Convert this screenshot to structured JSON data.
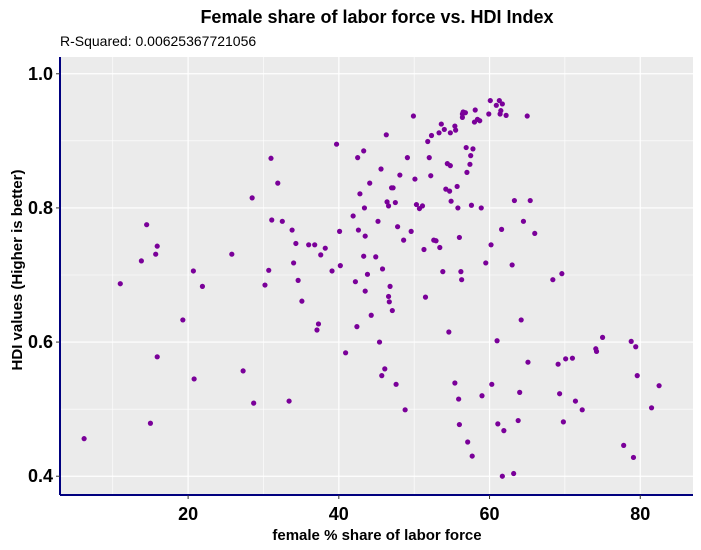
{
  "chart_data": {
    "type": "scatter",
    "title": "Female share of labor force vs. HDI Index",
    "subtitle": "R-Squared:  0.00625367721056",
    "xlabel": "female % share of labor force",
    "ylabel": "HDI values (Higher is better)",
    "xlim": [
      3,
      87
    ],
    "ylim": [
      0.372,
      1.025
    ],
    "x_ticks": [
      20,
      40,
      60,
      80
    ],
    "x_tick_labels": [
      "20",
      "40",
      "60",
      "80"
    ],
    "y_ticks": [
      0.4,
      0.6,
      0.8,
      1.0
    ],
    "y_tick_labels": [
      "0.4",
      "0.6",
      "0.8",
      "1.0"
    ],
    "grid": true,
    "colors": {
      "point": "#7a0099",
      "panel": "#ebebeb",
      "gridline": "#ffffff",
      "axis_line": "#00007f"
    },
    "points": [
      [
        6.2,
        0.456
      ],
      [
        11.0,
        0.687
      ],
      [
        13.8,
        0.721
      ],
      [
        14.5,
        0.775
      ],
      [
        15.0,
        0.479
      ],
      [
        15.7,
        0.731
      ],
      [
        15.9,
        0.743
      ],
      [
        15.9,
        0.578
      ],
      [
        19.3,
        0.633
      ],
      [
        20.7,
        0.706
      ],
      [
        20.8,
        0.545
      ],
      [
        21.9,
        0.683
      ],
      [
        25.8,
        0.731
      ],
      [
        27.3,
        0.557
      ],
      [
        28.5,
        0.815
      ],
      [
        28.7,
        0.509
      ],
      [
        30.2,
        0.685
      ],
      [
        30.7,
        0.707
      ],
      [
        31.0,
        0.874
      ],
      [
        31.1,
        0.782
      ],
      [
        31.9,
        0.837
      ],
      [
        32.5,
        0.78
      ],
      [
        33.4,
        0.512
      ],
      [
        33.8,
        0.767
      ],
      [
        34.0,
        0.718
      ],
      [
        34.3,
        0.747
      ],
      [
        34.6,
        0.692
      ],
      [
        35.1,
        0.661
      ],
      [
        36.0,
        0.745
      ],
      [
        36.8,
        0.745
      ],
      [
        37.1,
        0.618
      ],
      [
        37.3,
        0.627
      ],
      [
        37.6,
        0.73
      ],
      [
        38.2,
        0.74
      ],
      [
        39.1,
        0.706
      ],
      [
        39.7,
        0.895
      ],
      [
        40.1,
        0.765
      ],
      [
        40.2,
        0.714
      ],
      [
        40.9,
        0.584
      ],
      [
        41.9,
        0.788
      ],
      [
        42.2,
        0.69
      ],
      [
        42.4,
        0.623
      ],
      [
        42.5,
        0.875
      ],
      [
        42.6,
        0.767
      ],
      [
        42.8,
        0.821
      ],
      [
        43.3,
        0.728
      ],
      [
        43.3,
        0.885
      ],
      [
        43.4,
        0.8
      ],
      [
        43.5,
        0.676
      ],
      [
        43.5,
        0.758
      ],
      [
        43.8,
        0.701
      ],
      [
        44.1,
        0.837
      ],
      [
        44.3,
        0.64
      ],
      [
        44.9,
        0.727
      ],
      [
        45.2,
        0.78
      ],
      [
        45.4,
        0.6
      ],
      [
        45.6,
        0.858
      ],
      [
        45.7,
        0.55
      ],
      [
        45.8,
        0.709
      ],
      [
        46.1,
        0.56
      ],
      [
        46.3,
        0.909
      ],
      [
        46.4,
        0.809
      ],
      [
        46.6,
        0.668
      ],
      [
        46.6,
        0.803
      ],
      [
        46.7,
        0.66
      ],
      [
        46.8,
        0.683
      ],
      [
        47.0,
        0.83
      ],
      [
        47.1,
        0.647
      ],
      [
        47.2,
        0.83
      ],
      [
        47.5,
        0.808
      ],
      [
        47.6,
        0.537
      ],
      [
        47.8,
        0.772
      ],
      [
        48.1,
        0.849
      ],
      [
        48.6,
        0.752
      ],
      [
        48.8,
        0.499
      ],
      [
        49.1,
        0.875
      ],
      [
        49.6,
        0.765
      ],
      [
        49.9,
        0.937
      ],
      [
        50.1,
        0.843
      ],
      [
        50.3,
        0.805
      ],
      [
        50.7,
        0.799
      ],
      [
        51.1,
        0.803
      ],
      [
        51.3,
        0.738
      ],
      [
        51.5,
        0.667
      ],
      [
        51.8,
        0.899
      ],
      [
        52.0,
        0.875
      ],
      [
        52.2,
        0.848
      ],
      [
        52.3,
        0.908
      ],
      [
        52.6,
        0.752
      ],
      [
        52.9,
        0.751
      ],
      [
        53.3,
        0.912
      ],
      [
        53.4,
        0.741
      ],
      [
        53.6,
        0.925
      ],
      [
        53.8,
        0.705
      ],
      [
        54.0,
        0.917
      ],
      [
        54.2,
        0.828
      ],
      [
        54.4,
        0.866
      ],
      [
        54.6,
        0.615
      ],
      [
        54.7,
        0.825
      ],
      [
        54.8,
        0.863
      ],
      [
        54.8,
        0.912
      ],
      [
        54.9,
        0.81
      ],
      [
        55.4,
        0.922
      ],
      [
        55.4,
        0.539
      ],
      [
        55.5,
        0.916
      ],
      [
        55.7,
        0.832
      ],
      [
        55.8,
        0.8
      ],
      [
        55.9,
        0.515
      ],
      [
        56.0,
        0.756
      ],
      [
        56.0,
        0.477
      ],
      [
        56.2,
        0.705
      ],
      [
        56.3,
        0.693
      ],
      [
        56.4,
        0.935
      ],
      [
        56.4,
        0.94
      ],
      [
        56.5,
        0.943
      ],
      [
        56.8,
        0.942
      ],
      [
        56.9,
        0.89
      ],
      [
        57.0,
        0.853
      ],
      [
        57.1,
        0.451
      ],
      [
        57.4,
        0.865
      ],
      [
        57.5,
        0.878
      ],
      [
        57.6,
        0.804
      ],
      [
        57.7,
        0.43
      ],
      [
        57.8,
        0.888
      ],
      [
        58.0,
        0.928
      ],
      [
        58.1,
        0.946
      ],
      [
        58.4,
        0.932
      ],
      [
        58.7,
        0.93
      ],
      [
        58.9,
        0.8
      ],
      [
        59.0,
        0.52
      ],
      [
        59.5,
        0.718
      ],
      [
        59.9,
        0.94
      ],
      [
        60.1,
        0.96
      ],
      [
        60.2,
        0.745
      ],
      [
        60.3,
        0.537
      ],
      [
        60.9,
        0.953
      ],
      [
        61.0,
        0.602
      ],
      [
        61.1,
        0.478
      ],
      [
        61.3,
        0.96
      ],
      [
        61.4,
        0.94
      ],
      [
        61.5,
        0.945
      ],
      [
        61.6,
        0.768
      ],
      [
        61.7,
        0.955
      ],
      [
        61.7,
        0.4
      ],
      [
        61.9,
        0.468
      ],
      [
        62.2,
        0.938
      ],
      [
        63.0,
        0.715
      ],
      [
        63.2,
        0.404
      ],
      [
        63.3,
        0.811
      ],
      [
        63.8,
        0.483
      ],
      [
        64.0,
        0.525
      ],
      [
        64.2,
        0.633
      ],
      [
        64.5,
        0.78
      ],
      [
        65.0,
        0.937
      ],
      [
        65.1,
        0.57
      ],
      [
        65.4,
        0.811
      ],
      [
        66.0,
        0.762
      ],
      [
        68.4,
        0.693
      ],
      [
        69.1,
        0.567
      ],
      [
        69.3,
        0.523
      ],
      [
        69.6,
        0.702
      ],
      [
        69.8,
        0.481
      ],
      [
        70.1,
        0.575
      ],
      [
        71.0,
        0.576
      ],
      [
        71.4,
        0.512
      ],
      [
        72.3,
        0.499
      ],
      [
        74.1,
        0.59
      ],
      [
        74.2,
        0.586
      ],
      [
        75.0,
        0.607
      ],
      [
        77.8,
        0.446
      ],
      [
        78.8,
        0.601
      ],
      [
        79.1,
        0.428
      ],
      [
        79.4,
        0.593
      ],
      [
        79.6,
        0.55
      ],
      [
        81.5,
        0.502
      ],
      [
        82.5,
        0.535
      ]
    ]
  }
}
